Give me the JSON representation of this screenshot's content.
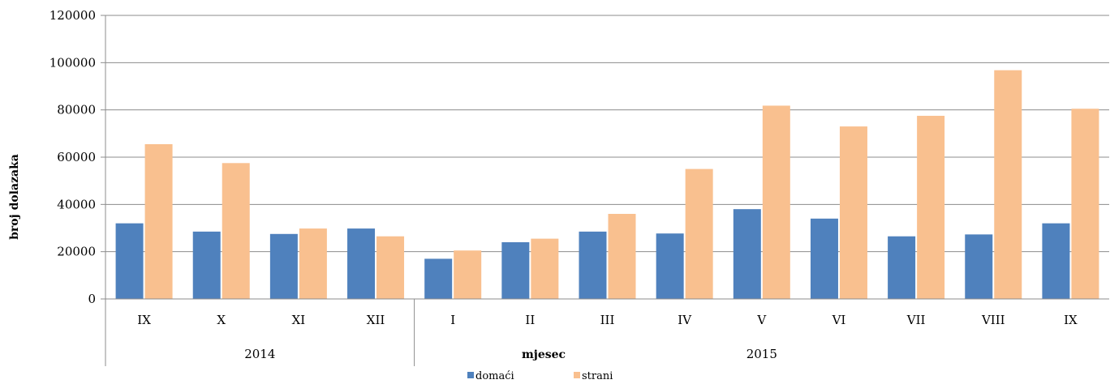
{
  "chart_data": {
    "type": "bar",
    "ylabel": "broj dolazaka",
    "xlabel": "mjesec",
    "ylim": [
      0,
      120000
    ],
    "yticks": [
      "0",
      "20000",
      "40000",
      "60000",
      "80000",
      "100000",
      "120000"
    ],
    "categories": [
      "IX",
      "X",
      "XI",
      "XII",
      "I",
      "II",
      "III",
      "IV",
      "V",
      "VI",
      "VII",
      "VIII",
      "IX"
    ],
    "groups": [
      {
        "label": "2014",
        "count": 4
      },
      {
        "label": "2015",
        "count": 9
      }
    ],
    "series": [
      {
        "name": "domaći",
        "color": "#4F81BD",
        "values": [
          32000,
          28500,
          27500,
          29800,
          17000,
          24000,
          28500,
          27700,
          38000,
          34000,
          26500,
          27300,
          32000
        ]
      },
      {
        "name": "strani",
        "color": "#F9C08F",
        "values": [
          65500,
          57500,
          29800,
          26500,
          20500,
          25500,
          36000,
          55000,
          81800,
          73000,
          77500,
          96800,
          80500
        ]
      }
    ],
    "grid": true,
    "legend_position": "bottom"
  }
}
